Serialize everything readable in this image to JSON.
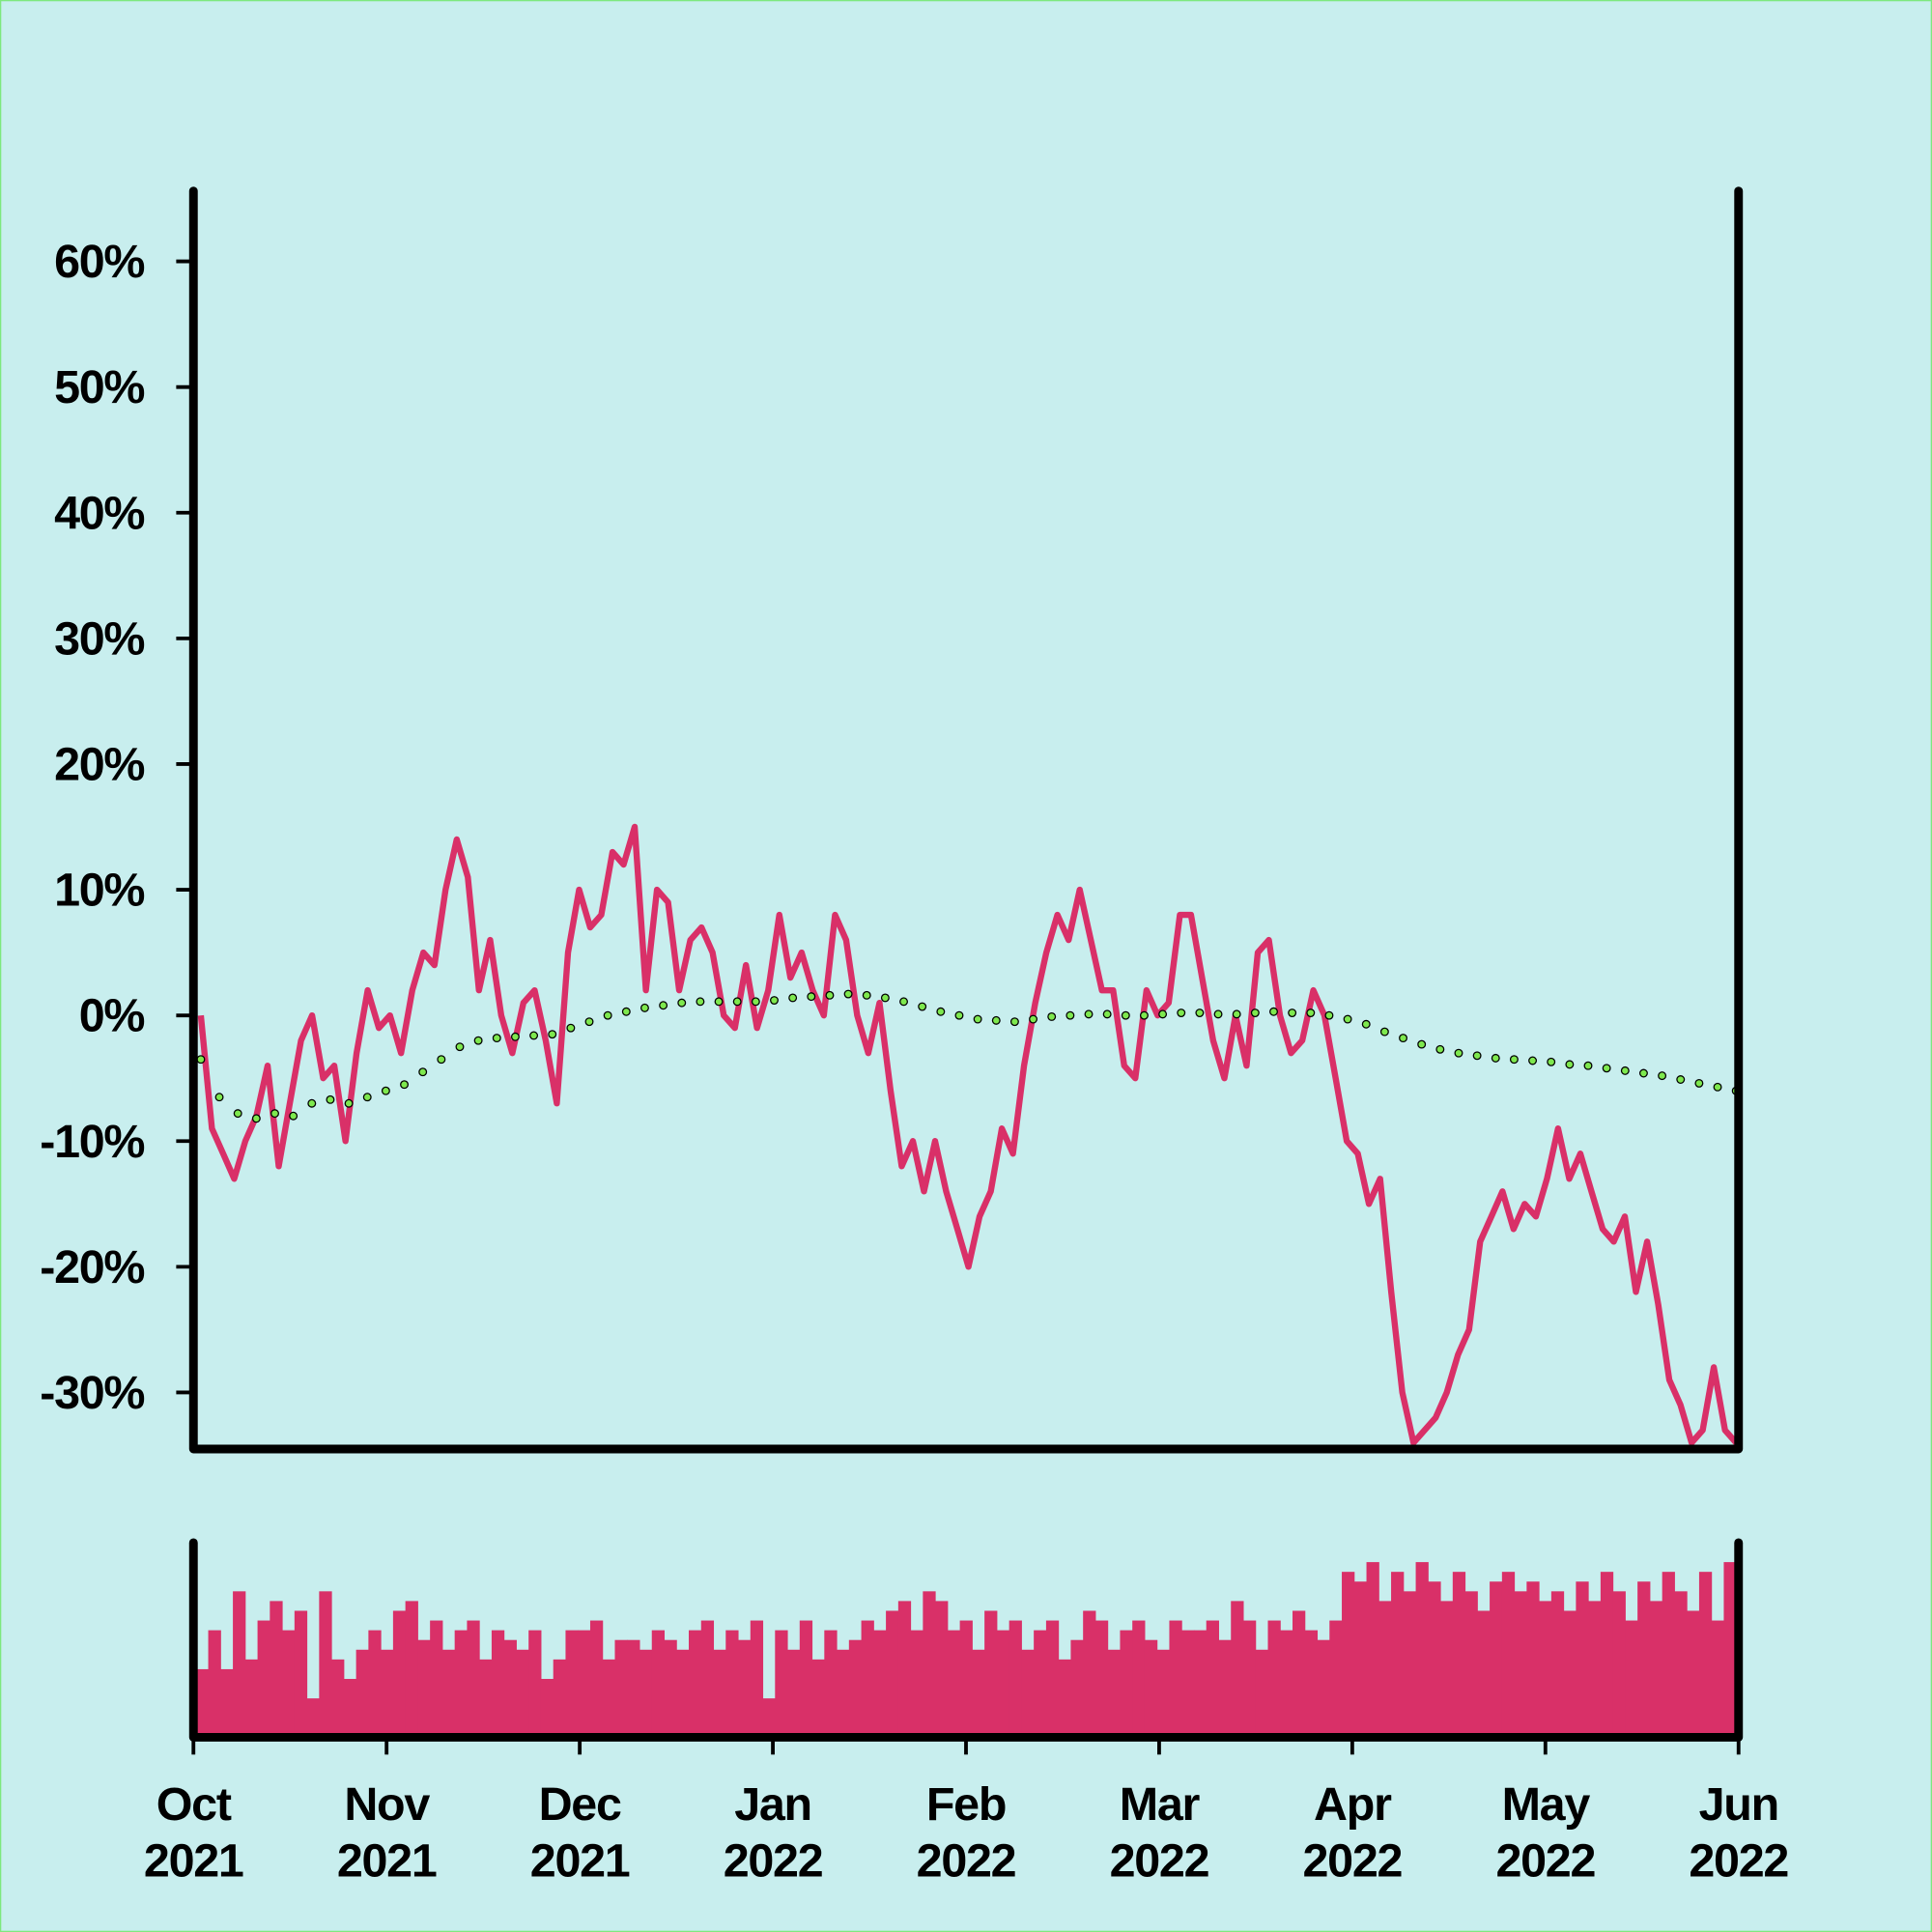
{
  "chart_data": [
    {
      "type": "line",
      "ylim": [
        -34.5,
        65.6
      ],
      "yticks": [
        {
          "value": -30,
          "label": "-30%"
        },
        {
          "value": -20,
          "label": "-20%"
        },
        {
          "value": -10,
          "label": "-10%"
        },
        {
          "value": 0,
          "label": "0%"
        },
        {
          "value": 10,
          "label": "10%"
        },
        {
          "value": 20,
          "label": "20%"
        },
        {
          "value": 30,
          "label": "30%"
        },
        {
          "value": 40,
          "label": "40%"
        },
        {
          "value": 50,
          "label": "50%"
        },
        {
          "value": 60,
          "label": "60%"
        }
      ],
      "series": [
        {
          "color": "#d93068",
          "style": "line",
          "values": [
            0,
            -9,
            -11,
            -13,
            -10,
            -8,
            -4,
            -12,
            -7,
            -2,
            0,
            -5,
            -4,
            -10,
            -3,
            2,
            -1,
            0,
            -3,
            2,
            5,
            4,
            10,
            14,
            11,
            2,
            6,
            0,
            -3,
            1,
            2,
            -2,
            -7,
            5,
            10,
            7,
            8,
            13,
            12,
            15,
            2,
            10,
            9,
            2,
            6,
            7,
            5,
            0,
            -1,
            4,
            -1,
            2,
            8,
            3,
            5,
            2,
            0,
            8,
            6,
            0,
            -3,
            1,
            -6,
            -12,
            -10,
            -14,
            -10,
            -14,
            -17,
            -20,
            -16,
            -14,
            -9,
            -11,
            -4,
            1,
            5,
            8,
            6,
            10,
            6,
            2,
            2,
            -4,
            -5,
            2,
            0,
            1,
            8,
            8,
            3,
            -2,
            -5,
            0,
            -4,
            5,
            6,
            0,
            -3,
            -2,
            2,
            0,
            -5,
            -10,
            -11,
            -15,
            -13,
            -22,
            -30,
            -34,
            -33,
            -32,
            -30,
            -27,
            -25,
            -18,
            -16,
            -14,
            -17,
            -15,
            -16,
            -13,
            -9,
            -13,
            -11,
            -14,
            -17,
            -18,
            -16,
            -22,
            -18,
            -23,
            -29,
            -31,
            -34,
            -33,
            -28,
            -33,
            -34
          ]
        },
        {
          "color": "#7ee84e",
          "style": "dots",
          "values": [
            -3.5,
            -6.5,
            -7.8,
            -8.2,
            -7.8,
            -8,
            -7,
            -6.7,
            -7,
            -6.5,
            -6,
            -5.5,
            -4.5,
            -3.5,
            -2.5,
            -2,
            -1.8,
            -1.7,
            -1.6,
            -1.5,
            -1,
            -0.5,
            0,
            0.3,
            0.6,
            0.8,
            1,
            1.1,
            1.1,
            1.1,
            1.1,
            1.2,
            1.4,
            1.5,
            1.6,
            1.7,
            1.6,
            1.4,
            1.1,
            0.7,
            0.3,
            0,
            -0.3,
            -0.4,
            -0.5,
            -0.3,
            -0.1,
            0,
            0.1,
            0.1,
            0,
            0,
            0.1,
            0.2,
            0.2,
            0.1,
            0.1,
            0.2,
            0.3,
            0.2,
            0.2,
            0,
            -0.3,
            -0.7,
            -1.3,
            -1.8,
            -2.3,
            -2.7,
            -3,
            -3.2,
            -3.4,
            -3.5,
            -3.6,
            -3.7,
            -3.9,
            -4,
            -4.2,
            -4.4,
            -4.6,
            -4.8,
            -5.1,
            -5.4,
            -5.7,
            -6
          ]
        }
      ]
    },
    {
      "type": "bar",
      "color": "#d93068",
      "ylim": [
        0,
        100
      ],
      "xticks": [
        [
          "Oct",
          "2021"
        ],
        [
          "Nov",
          "2021"
        ],
        [
          "Dec",
          "2021"
        ],
        [
          "Jan",
          "2022"
        ],
        [
          "Feb",
          "2022"
        ],
        [
          "Mar",
          "2022"
        ],
        [
          "Apr",
          "2022"
        ],
        [
          "May",
          "2022"
        ],
        [
          "Jun",
          "2022"
        ]
      ],
      "values": [
        35,
        55,
        35,
        75,
        40,
        60,
        70,
        55,
        65,
        20,
        75,
        40,
        30,
        45,
        55,
        45,
        65,
        70,
        50,
        60,
        45,
        55,
        60,
        40,
        55,
        50,
        45,
        55,
        30,
        40,
        55,
        55,
        60,
        40,
        50,
        50,
        45,
        55,
        50,
        45,
        55,
        60,
        45,
        55,
        50,
        60,
        20,
        55,
        45,
        60,
        40,
        55,
        45,
        50,
        60,
        55,
        65,
        70,
        55,
        75,
        70,
        55,
        60,
        45,
        65,
        55,
        60,
        45,
        55,
        60,
        40,
        50,
        65,
        60,
        45,
        55,
        60,
        50,
        45,
        60,
        55,
        55,
        60,
        50,
        70,
        60,
        45,
        60,
        55,
        65,
        55,
        50,
        60,
        85,
        80,
        90,
        70,
        85,
        75,
        90,
        80,
        70,
        85,
        75,
        65,
        80,
        85,
        75,
        80,
        70,
        75,
        65,
        80,
        70,
        85,
        75,
        60,
        80,
        70,
        85,
        75,
        65,
        85,
        60,
        90
      ]
    }
  ]
}
